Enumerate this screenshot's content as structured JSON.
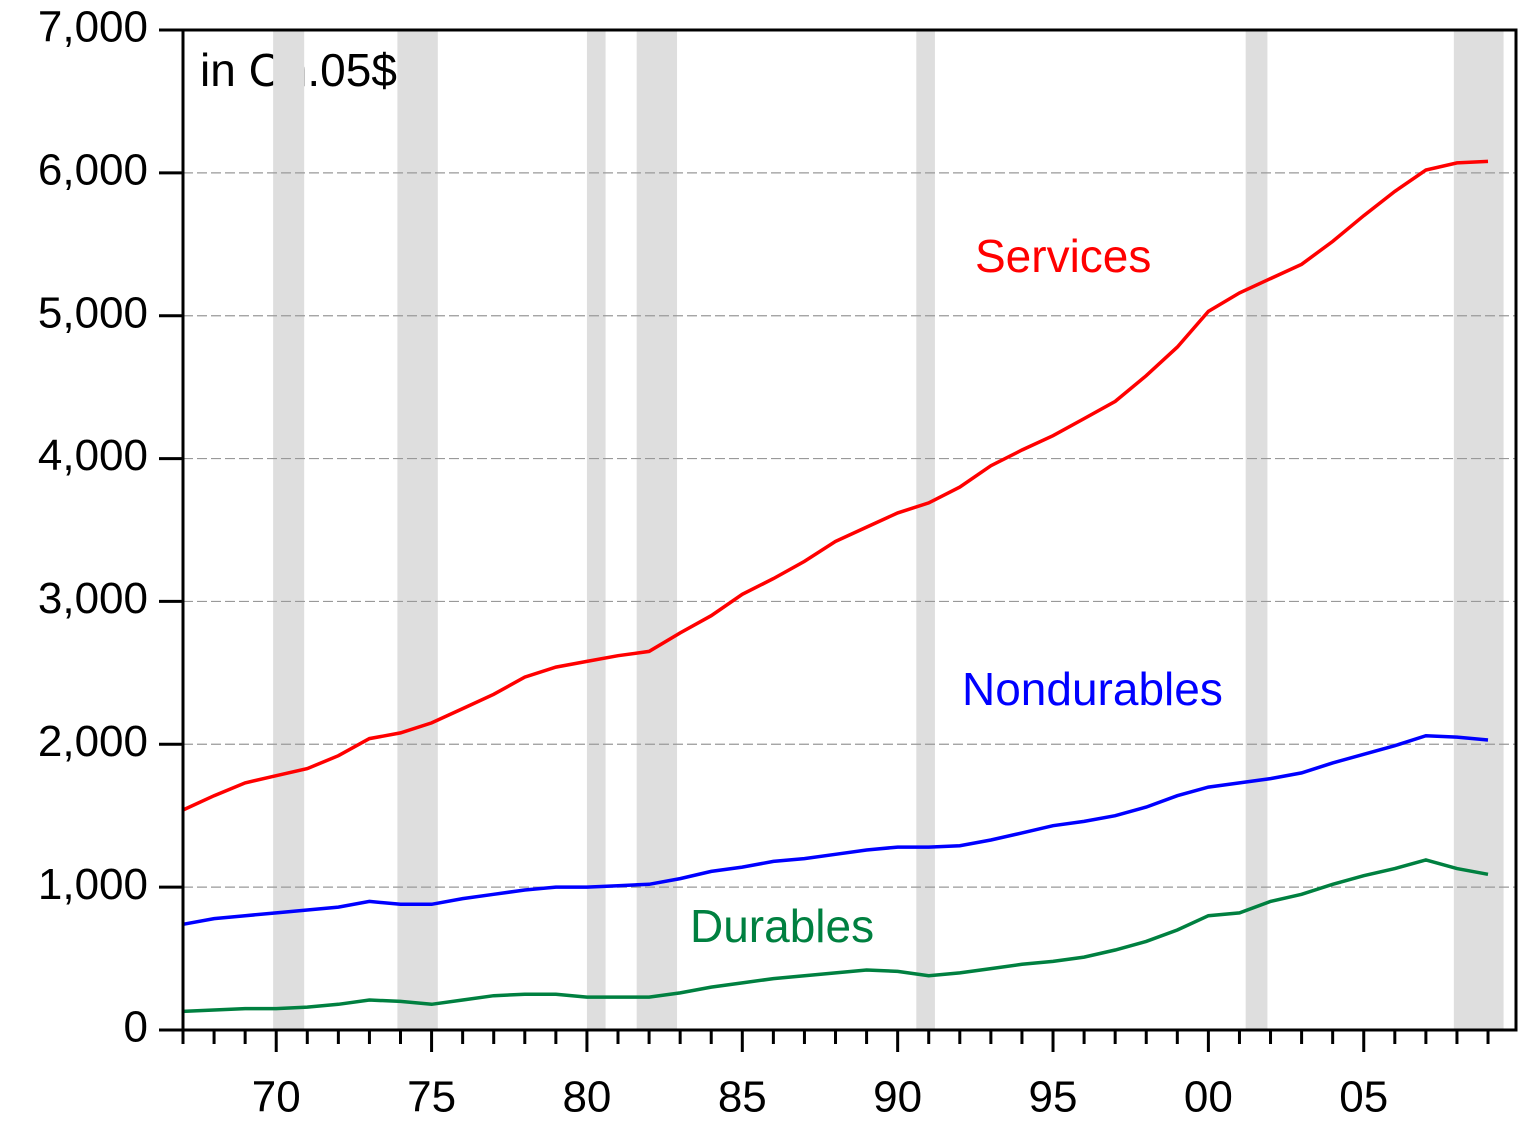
{
  "chart_data": {
    "type": "line",
    "annotation": "in Ch.05$",
    "x": [
      1967,
      1968,
      1969,
      1970,
      1971,
      1972,
      1973,
      1974,
      1975,
      1976,
      1977,
      1978,
      1979,
      1980,
      1981,
      1982,
      1983,
      1984,
      1985,
      1986,
      1987,
      1988,
      1989,
      1990,
      1991,
      1992,
      1993,
      1994,
      1995,
      1996,
      1997,
      1998,
      1999,
      2000,
      2001,
      2002,
      2003,
      2004,
      2005,
      2006,
      2007,
      2008,
      2009
    ],
    "series": [
      {
        "name": "Services",
        "color": "#ff0000",
        "values": [
          1540,
          1640,
          1730,
          1780,
          1830,
          1920,
          2040,
          2080,
          2150,
          2250,
          2350,
          2470,
          2540,
          2580,
          2620,
          2650,
          2780,
          2900,
          3050,
          3160,
          3280,
          3420,
          3520,
          3620,
          3690,
          3800,
          3950,
          4060,
          4160,
          4280,
          4400,
          4580,
          4780,
          5030,
          5160,
          5260,
          5360,
          5520,
          5700,
          5870,
          6020,
          6070,
          6080
        ]
      },
      {
        "name": "Nondurables",
        "color": "#0000ff",
        "values": [
          740,
          780,
          800,
          820,
          840,
          860,
          900,
          880,
          880,
          920,
          950,
          980,
          1000,
          1000,
          1010,
          1020,
          1060,
          1110,
          1140,
          1180,
          1200,
          1230,
          1260,
          1280,
          1280,
          1290,
          1330,
          1380,
          1430,
          1460,
          1500,
          1560,
          1640,
          1700,
          1730,
          1760,
          1800,
          1870,
          1930,
          1990,
          2060,
          2050,
          2030
        ]
      },
      {
        "name": "Durables",
        "color": "#008040",
        "values": [
          130,
          140,
          150,
          150,
          160,
          180,
          210,
          200,
          180,
          210,
          240,
          250,
          250,
          230,
          230,
          230,
          260,
          300,
          330,
          360,
          380,
          400,
          420,
          410,
          380,
          400,
          430,
          460,
          480,
          510,
          560,
          620,
          700,
          800,
          820,
          900,
          950,
          1020,
          1080,
          1130,
          1190,
          1130,
          1090
        ]
      }
    ],
    "recessions": [
      [
        1969.9,
        1970.9
      ],
      [
        1973.9,
        1975.2
      ],
      [
        1980.0,
        1980.6
      ],
      [
        1981.6,
        1982.9
      ],
      [
        1990.6,
        1991.2
      ],
      [
        2001.2,
        2001.9
      ],
      [
        2007.9,
        2009.5
      ]
    ],
    "xlim": [
      1967,
      2009.9
    ],
    "xticks": [
      {
        "value": 1970,
        "label": "70"
      },
      {
        "value": 1975,
        "label": "75"
      },
      {
        "value": 1980,
        "label": "80"
      },
      {
        "value": 1985,
        "label": "85"
      },
      {
        "value": 1990,
        "label": "90"
      },
      {
        "value": 1995,
        "label": "95"
      },
      {
        "value": 2000,
        "label": "00"
      },
      {
        "value": 2005,
        "label": "05"
      }
    ],
    "xminorticks": [
      1967,
      1968,
      1969,
      1971,
      1972,
      1973,
      1974,
      1976,
      1977,
      1978,
      1979,
      1981,
      1982,
      1983,
      1984,
      1986,
      1987,
      1988,
      1989,
      1991,
      1992,
      1993,
      1994,
      1996,
      1997,
      1998,
      1999,
      2001,
      2002,
      2003,
      2004,
      2006,
      2007,
      2008,
      2009
    ],
    "ylim": [
      0,
      7000
    ],
    "yticks": [
      0,
      {
        "value": 1000,
        "label": "1,000"
      },
      {
        "value": 2000,
        "label": "2,000"
      },
      {
        "value": 3000,
        "label": "3,000"
      },
      {
        "value": 4000,
        "label": "4,000"
      },
      {
        "value": 5000,
        "label": "5,000"
      },
      {
        "value": 6000,
        "label": "6,000"
      },
      {
        "value": 7000,
        "label": "7,000"
      }
    ],
    "grid": true
  }
}
